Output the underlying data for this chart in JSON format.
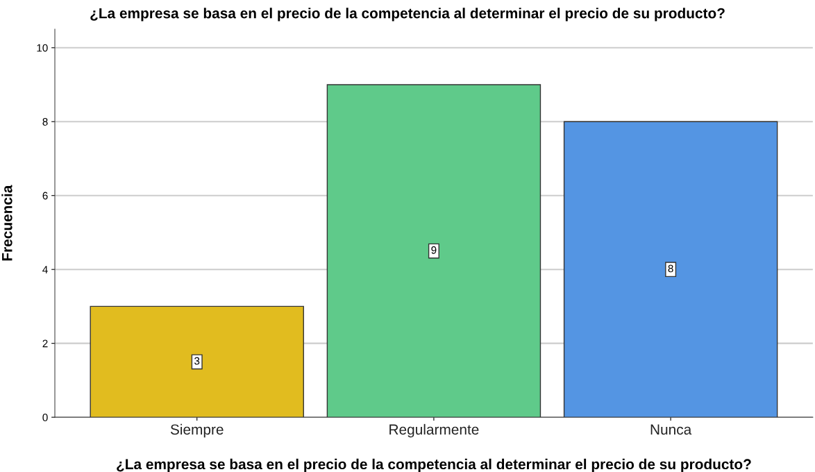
{
  "chart_data": {
    "type": "bar",
    "title": "¿La empresa se basa en el precio de la competencia al determinar el precio de su producto?",
    "xlabel": "¿La empresa se basa en el precio de la competencia al determinar el precio de su producto?",
    "ylabel": "Frecuencia",
    "categories": [
      "Siempre",
      "Regularmente",
      "Nunca"
    ],
    "values": [
      3,
      9,
      8
    ],
    "colors": [
      "#e1bc1f",
      "#5fca8a",
      "#5495e3"
    ],
    "ylim": [
      0,
      10.5
    ],
    "yticks": [
      0,
      2,
      4,
      6,
      8,
      10
    ],
    "grid": "y",
    "data_labels": true
  }
}
